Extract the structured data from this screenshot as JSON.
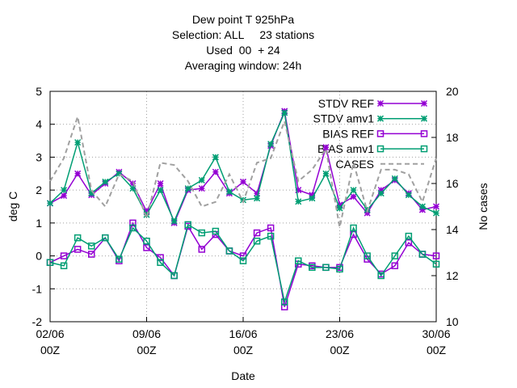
{
  "chart_data": {
    "type": "line",
    "title": [
      "Dew point T 925hPa",
      "Selection: ALL     23 stations",
      "Used  00  + 24",
      "Averaging window: 24h"
    ],
    "xlabel": "Date",
    "ylabel": "deg C",
    "y2label": "No cases",
    "x": [
      2,
      3,
      4,
      5,
      6,
      7,
      8,
      9,
      10,
      11,
      12,
      13,
      14,
      15,
      16,
      17,
      18,
      19,
      20,
      21,
      22,
      23,
      24,
      25,
      26,
      27,
      28,
      29,
      30
    ],
    "xlim": [
      2,
      30
    ],
    "xticks": [
      {
        "value": 2,
        "label": "02/06\n00Z"
      },
      {
        "value": 9,
        "label": "09/06\n00Z"
      },
      {
        "value": 16,
        "label": "16/06\n00Z"
      },
      {
        "value": 23,
        "label": "23/06\n00Z"
      },
      {
        "value": 30,
        "label": "30/06\n00Z"
      }
    ],
    "ylim": [
      -2,
      5
    ],
    "yticks": [
      -2,
      -1,
      0,
      1,
      2,
      3,
      4,
      5
    ],
    "y2lim": [
      10,
      20
    ],
    "y2ticks": [
      10,
      12,
      14,
      16,
      18,
      20
    ],
    "grid": true,
    "legend": "top-right",
    "series": [
      {
        "name": "STDV REF",
        "color": "#9400d3",
        "marker": "star",
        "values": [
          1.6,
          1.83,
          2.5,
          1.85,
          2.2,
          2.55,
          2.2,
          1.35,
          2.2,
          1.0,
          2.0,
          2.05,
          2.55,
          1.9,
          2.25,
          1.9,
          3.35,
          4.4,
          2.0,
          1.85,
          3.3,
          1.55,
          1.8,
          1.3,
          2.0,
          2.3,
          1.9,
          1.4,
          1.5
        ]
      },
      {
        "name": "STDV amv1",
        "color": "#009e73",
        "marker": "star",
        "values": [
          1.6,
          2.0,
          3.45,
          1.9,
          2.25,
          2.5,
          2.05,
          1.25,
          2.0,
          1.05,
          2.05,
          2.3,
          3.0,
          1.95,
          1.7,
          1.75,
          3.4,
          4.35,
          1.65,
          1.75,
          2.5,
          1.45,
          2.0,
          1.4,
          1.9,
          2.35,
          1.85,
          1.5,
          1.3
        ]
      },
      {
        "name": "BIAS REF",
        "color": "#9400d3",
        "marker": "square",
        "values": [
          -0.2,
          0.0,
          0.2,
          0.05,
          0.55,
          -0.15,
          1.0,
          0.25,
          -0.05,
          -0.6,
          0.9,
          0.2,
          0.65,
          0.15,
          0.0,
          0.7,
          0.85,
          -1.55,
          -0.25,
          -0.3,
          -0.35,
          -0.35,
          0.65,
          -0.1,
          -0.55,
          -0.3,
          0.4,
          0.05,
          0.0
        ]
      },
      {
        "name": "BIAS amv1",
        "color": "#009e73",
        "marker": "square",
        "values": [
          -0.2,
          -0.3,
          0.55,
          0.3,
          0.55,
          -0.1,
          0.85,
          0.45,
          -0.2,
          -0.6,
          0.95,
          0.7,
          0.75,
          0.15,
          -0.15,
          0.45,
          0.6,
          -1.4,
          -0.15,
          -0.35,
          -0.35,
          -0.4,
          0.85,
          0.0,
          -0.6,
          0.0,
          0.6,
          0.05,
          -0.25
        ]
      },
      {
        "name": "CASES",
        "color": "#a0a0a0",
        "marker": "none",
        "dash": true,
        "axis": "y2",
        "values": [
          16.1,
          17.1,
          18.9,
          15.7,
          15.0,
          16.4,
          16.1,
          14.5,
          16.9,
          16.8,
          16.1,
          15.0,
          15.2,
          16.4,
          15.2,
          16.9,
          17.1,
          18.7,
          16.1,
          16.6,
          17.5,
          14.1,
          16.9,
          14.8,
          16.6,
          16.6,
          16.4,
          15.2,
          17.1
        ]
      }
    ]
  }
}
